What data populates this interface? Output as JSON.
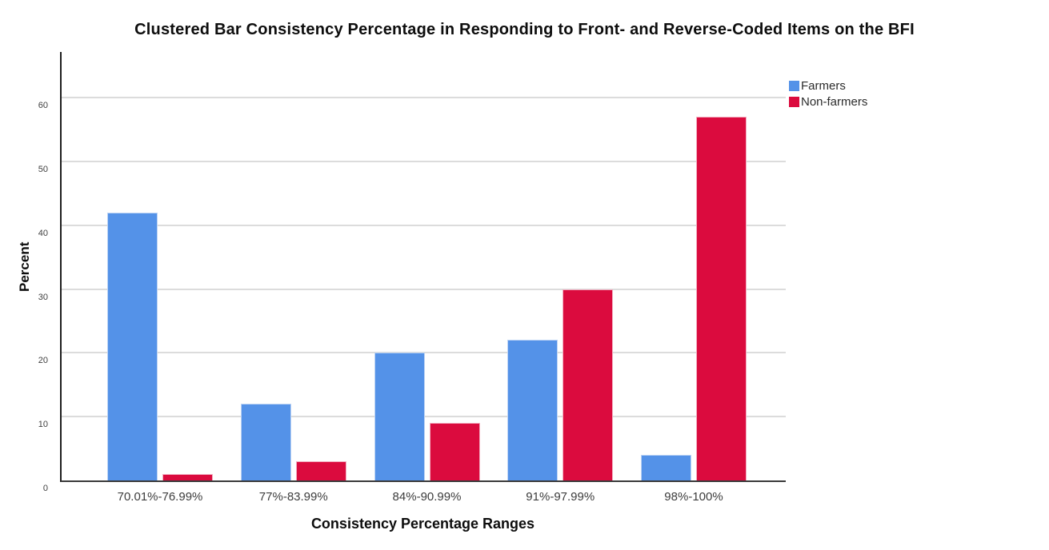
{
  "title": "Clustered Bar Consistency Percentage in Responding to Front- and Reverse-Coded Items on the BFI",
  "chart_data": {
    "type": "bar",
    "subtype": "clustered",
    "title": "Clustered Bar Consistency Percentage in Responding to Front- and Reverse-Coded Items on the BFI",
    "xlabel": "Consistency Percentage Ranges",
    "ylabel": "Percent",
    "categories": [
      "70.01%-76.99%",
      "77%-83.99%",
      "84%-90.99%",
      "91%-97.99%",
      "98%-100%"
    ],
    "series": [
      {
        "name": "Farmers",
        "color": "#5492E8",
        "border_color": "#BCD3F4",
        "values": [
          42,
          12,
          20,
          22,
          4
        ]
      },
      {
        "name": "Non-farmers",
        "color": "#DB0B3E",
        "border_color": "#F2AFC1",
        "values": [
          1,
          3,
          9,
          30,
          57
        ]
      }
    ],
    "ylim": [
      0,
      67.4
    ],
    "yticks": [
      0,
      10,
      20,
      30,
      40,
      50,
      60
    ],
    "grid": true,
    "gridline_color": "#dcdcdc",
    "legend_position": "top-right",
    "background_color": "#ffffff"
  }
}
